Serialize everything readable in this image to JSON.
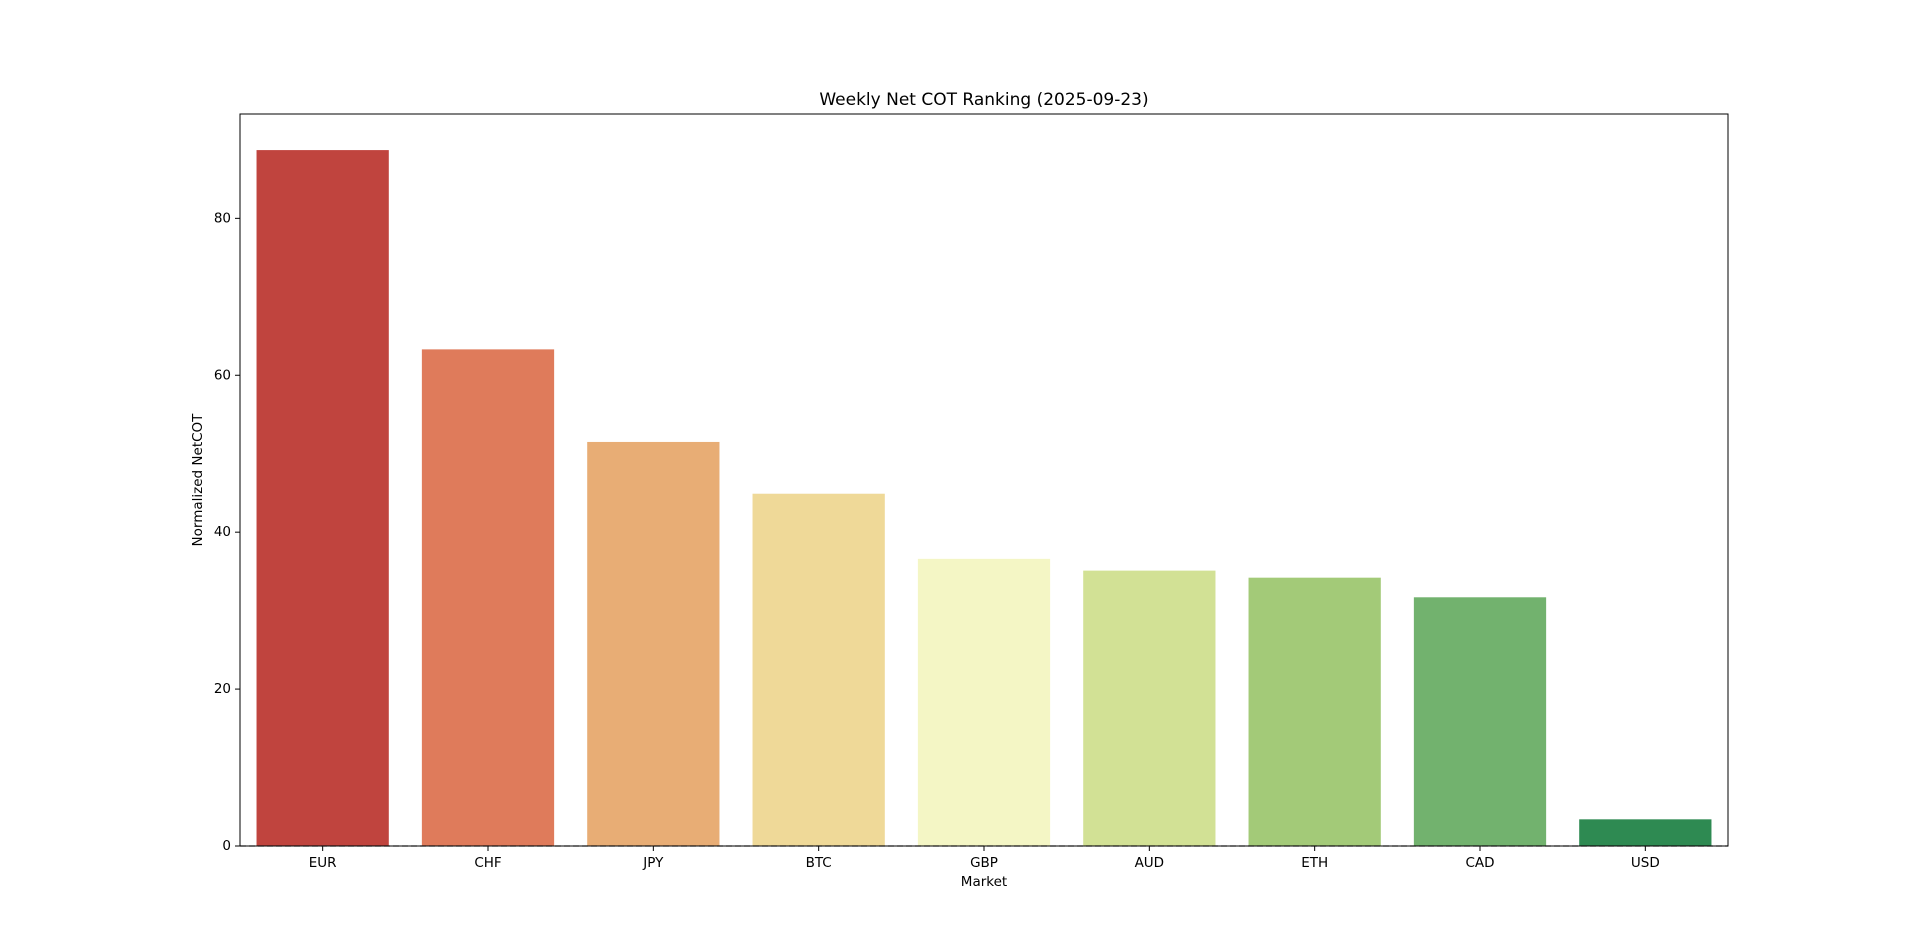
{
  "chart_data": {
    "type": "bar",
    "title": "Weekly Net COT Ranking (2025-09-23)",
    "x_label": "Market",
    "y_label": "Normalized NetCOT",
    "categories": [
      "EUR",
      "CHF",
      "JPY",
      "BTC",
      "GBP",
      "AUD",
      "ETH",
      "CAD",
      "USD"
    ],
    "values": [
      88.7,
      63.3,
      51.5,
      44.9,
      36.6,
      35.1,
      34.2,
      31.7,
      3.4
    ],
    "colors": [
      "#c0443e",
      "#df7b5b",
      "#e8ad75",
      "#efd998",
      "#f4f6c5",
      "#d2e195",
      "#a3ca78",
      "#72b26e",
      "#2e8a52"
    ],
    "ylim": [
      0,
      93.3
    ],
    "yticks": [
      0,
      20,
      40,
      60,
      80
    ],
    "hline": 0,
    "grid": false
  }
}
